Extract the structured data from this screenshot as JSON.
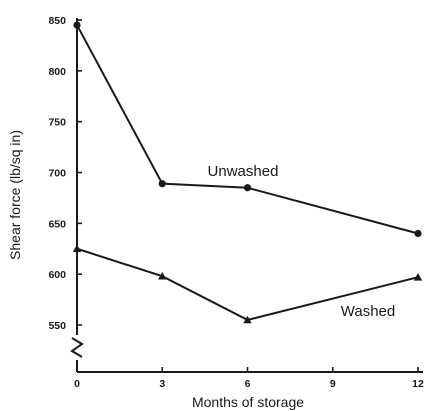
{
  "chart_data": {
    "type": "line",
    "title": "",
    "xlabel": "Months of storage",
    "ylabel": "Shear force (lb/sq in)",
    "x_ticks": [
      0,
      3,
      6,
      9,
      12
    ],
    "y_ticks": [
      550,
      600,
      650,
      700,
      750,
      800,
      850
    ],
    "xlim": [
      0,
      12
    ],
    "ylim": [
      550,
      850
    ],
    "y_axis_break": true,
    "grid": false,
    "legend": "none (series labelled directly on chart)",
    "series": [
      {
        "name": "Unwashed",
        "marker": "circle",
        "x": [
          0,
          3,
          6,
          12
        ],
        "y": [
          845,
          689,
          685,
          640
        ]
      },
      {
        "name": "Washed",
        "marker": "triangle",
        "x": [
          0,
          3,
          6,
          12
        ],
        "y": [
          625,
          598,
          555,
          597
        ]
      }
    ]
  }
}
